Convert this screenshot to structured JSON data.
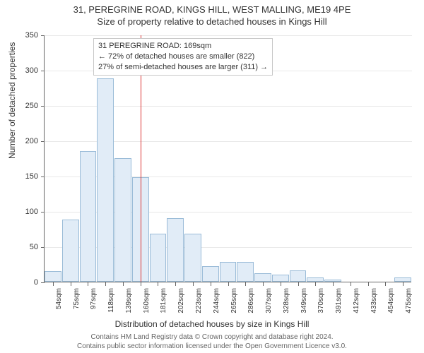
{
  "title_line1": "31, PEREGRINE ROAD, KINGS HILL, WEST MALLING, ME19 4PE",
  "title_line2": "Size of property relative to detached houses in Kings Hill",
  "chart": {
    "type": "histogram",
    "y_label": "Number of detached properties",
    "x_label": "Distribution of detached houses by size in Kings Hill",
    "ylim": [
      0,
      350
    ],
    "ytick_step": 50,
    "yticks": [
      0,
      50,
      100,
      150,
      200,
      250,
      300,
      350
    ],
    "x_tick_labels": [
      "54sqm",
      "75sqm",
      "97sqm",
      "118sqm",
      "139sqm",
      "160sqm",
      "181sqm",
      "202sqm",
      "223sqm",
      "244sqm",
      "265sqm",
      "286sqm",
      "307sqm",
      "328sqm",
      "349sqm",
      "370sqm",
      "391sqm",
      "412sqm",
      "433sqm",
      "454sqm",
      "475sqm"
    ],
    "values": [
      15,
      88,
      185,
      288,
      175,
      148,
      68,
      90,
      68,
      22,
      28,
      28,
      12,
      10,
      16,
      6,
      3,
      0,
      0,
      0,
      6
    ],
    "bar_fill": "#e1ecf7",
    "bar_border": "#9bbcd8",
    "grid_color": "#e8e8e8",
    "axis_color": "#666666",
    "background_color": "#ffffff",
    "reference_line": {
      "x_value": 169,
      "x_min": 54,
      "x_range": 441,
      "color": "#dd3333"
    },
    "annotation": {
      "line1": "31 PEREGRINE ROAD: 169sqm",
      "line2": "← 72% of detached houses are smaller (822)",
      "line3": "27% of semi-detached houses are larger (311) →"
    }
  },
  "footer_line1": "Contains HM Land Registry data © Crown copyright and database right 2024.",
  "footer_line2": "Contains public sector information licensed under the Open Government Licence v3.0."
}
